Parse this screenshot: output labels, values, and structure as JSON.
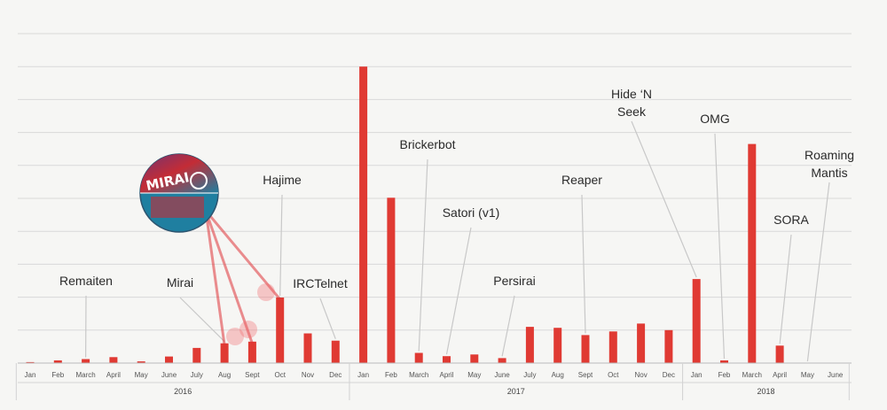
{
  "chart_data": {
    "type": "bar",
    "title": "",
    "xlabel": "",
    "ylabel": "",
    "grid": true,
    "bar_color": "#e03a33",
    "categories": [
      "Jan",
      "Feb",
      "March",
      "April",
      "May",
      "June",
      "July",
      "Aug",
      "Sept",
      "Oct",
      "Nov",
      "Dec",
      "Jan",
      "Feb",
      "March",
      "April",
      "May",
      "June",
      "July",
      "Aug",
      "Sept",
      "Oct",
      "Nov",
      "Dec",
      "Jan",
      "Feb",
      "March",
      "April",
      "May",
      "June"
    ],
    "year_groups": [
      {
        "label": "2016",
        "start": 0,
        "end": 11
      },
      {
        "label": "2017",
        "start": 12,
        "end": 23
      },
      {
        "label": "2018",
        "start": 24,
        "end": 29
      }
    ],
    "values": [
      0.3,
      0.8,
      1.2,
      1.8,
      0.5,
      2.0,
      4.6,
      6.0,
      6.5,
      19.9,
      9.0,
      6.8,
      90.0,
      50.2,
      3.1,
      2.1,
      2.6,
      1.5,
      11.0,
      10.7,
      8.5,
      9.6,
      12.0,
      10.0,
      25.5,
      0.8,
      66.5,
      5.3,
      0,
      0
    ],
    "ylim": [
      0,
      100
    ],
    "annotations": [
      {
        "label": "Remaiten",
        "index": 2
      },
      {
        "label": "Mirai",
        "index": 7
      },
      {
        "label": "Hajime",
        "index": 9
      },
      {
        "label": "IRCTelnet",
        "index": 11
      },
      {
        "label": "Brickerbot",
        "index": 14
      },
      {
        "label": "Satori (v1)",
        "index": 15
      },
      {
        "label": "Persirai",
        "index": 17
      },
      {
        "label": "Reaper",
        "index": 20
      },
      {
        "label": "Hide ‘N",
        "label2": "Seek",
        "index": 24
      },
      {
        "label": "OMG",
        "index": 25
      },
      {
        "label": "SORA",
        "index": 27
      },
      {
        "label": "Roaming",
        "label2": "Mantis",
        "index": 28
      }
    ],
    "logo": {
      "text": "MIRAI",
      "colors": [
        "#1f7fa0",
        "#d6232a",
        "#7a2b6e"
      ]
    }
  }
}
